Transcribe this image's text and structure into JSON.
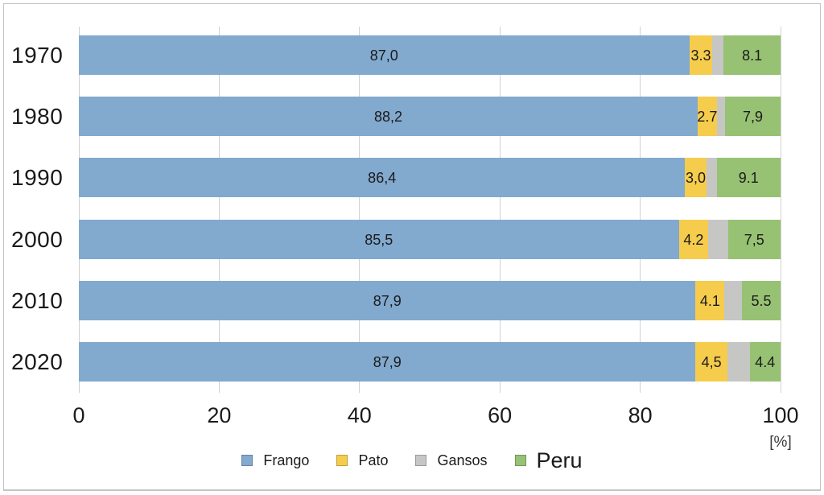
{
  "chart_data": {
    "type": "bar",
    "orientation": "horizontal-stacked",
    "categories": [
      "1970",
      "1980",
      "1990",
      "2000",
      "2010",
      "2020"
    ],
    "series": [
      {
        "name": "Frango",
        "color": "#82a9ce",
        "values": [
          87.0,
          88.2,
          86.4,
          85.5,
          87.9,
          87.9
        ],
        "labels": [
          "87,0",
          "88,2",
          "86,4",
          "85,5",
          "87,9",
          "87,9"
        ]
      },
      {
        "name": "Pato",
        "color": "#f6cc4d",
        "values": [
          3.3,
          2.7,
          3.0,
          4.2,
          4.1,
          4.5
        ],
        "labels": [
          "3.3",
          "2.7",
          "3,0",
          "4.2",
          "4.1",
          "4,5"
        ]
      },
      {
        "name": "Gansos",
        "color": "#c6c6c4",
        "values": [
          1.6,
          1.2,
          1.5,
          2.8,
          2.5,
          3.2
        ],
        "labels": [
          "",
          "",
          "",
          "",
          "",
          ""
        ]
      },
      {
        "name": "Peru",
        "color": "#97c173",
        "values": [
          8.1,
          7.9,
          9.1,
          7.5,
          5.5,
          4.4
        ],
        "labels": [
          "8.1",
          "7,9",
          "9.1",
          "7,5",
          "5.5",
          "4.4"
        ]
      }
    ],
    "x_ticks": [
      "0",
      "20",
      "40",
      "60",
      "80",
      "100"
    ],
    "xlim": [
      0,
      100
    ],
    "axis_unit": "[%]",
    "grid": "vertical",
    "legend_position": "bottom-center",
    "legend": [
      {
        "label": "Frango",
        "color": "#82a9ce",
        "emphasis": false
      },
      {
        "label": "Pato",
        "color": "#f6cc4d",
        "emphasis": false
      },
      {
        "label": "Gansos",
        "color": "#c6c6c4",
        "emphasis": false
      },
      {
        "label": "Peru",
        "color": "#97c173",
        "emphasis": true
      }
    ]
  }
}
